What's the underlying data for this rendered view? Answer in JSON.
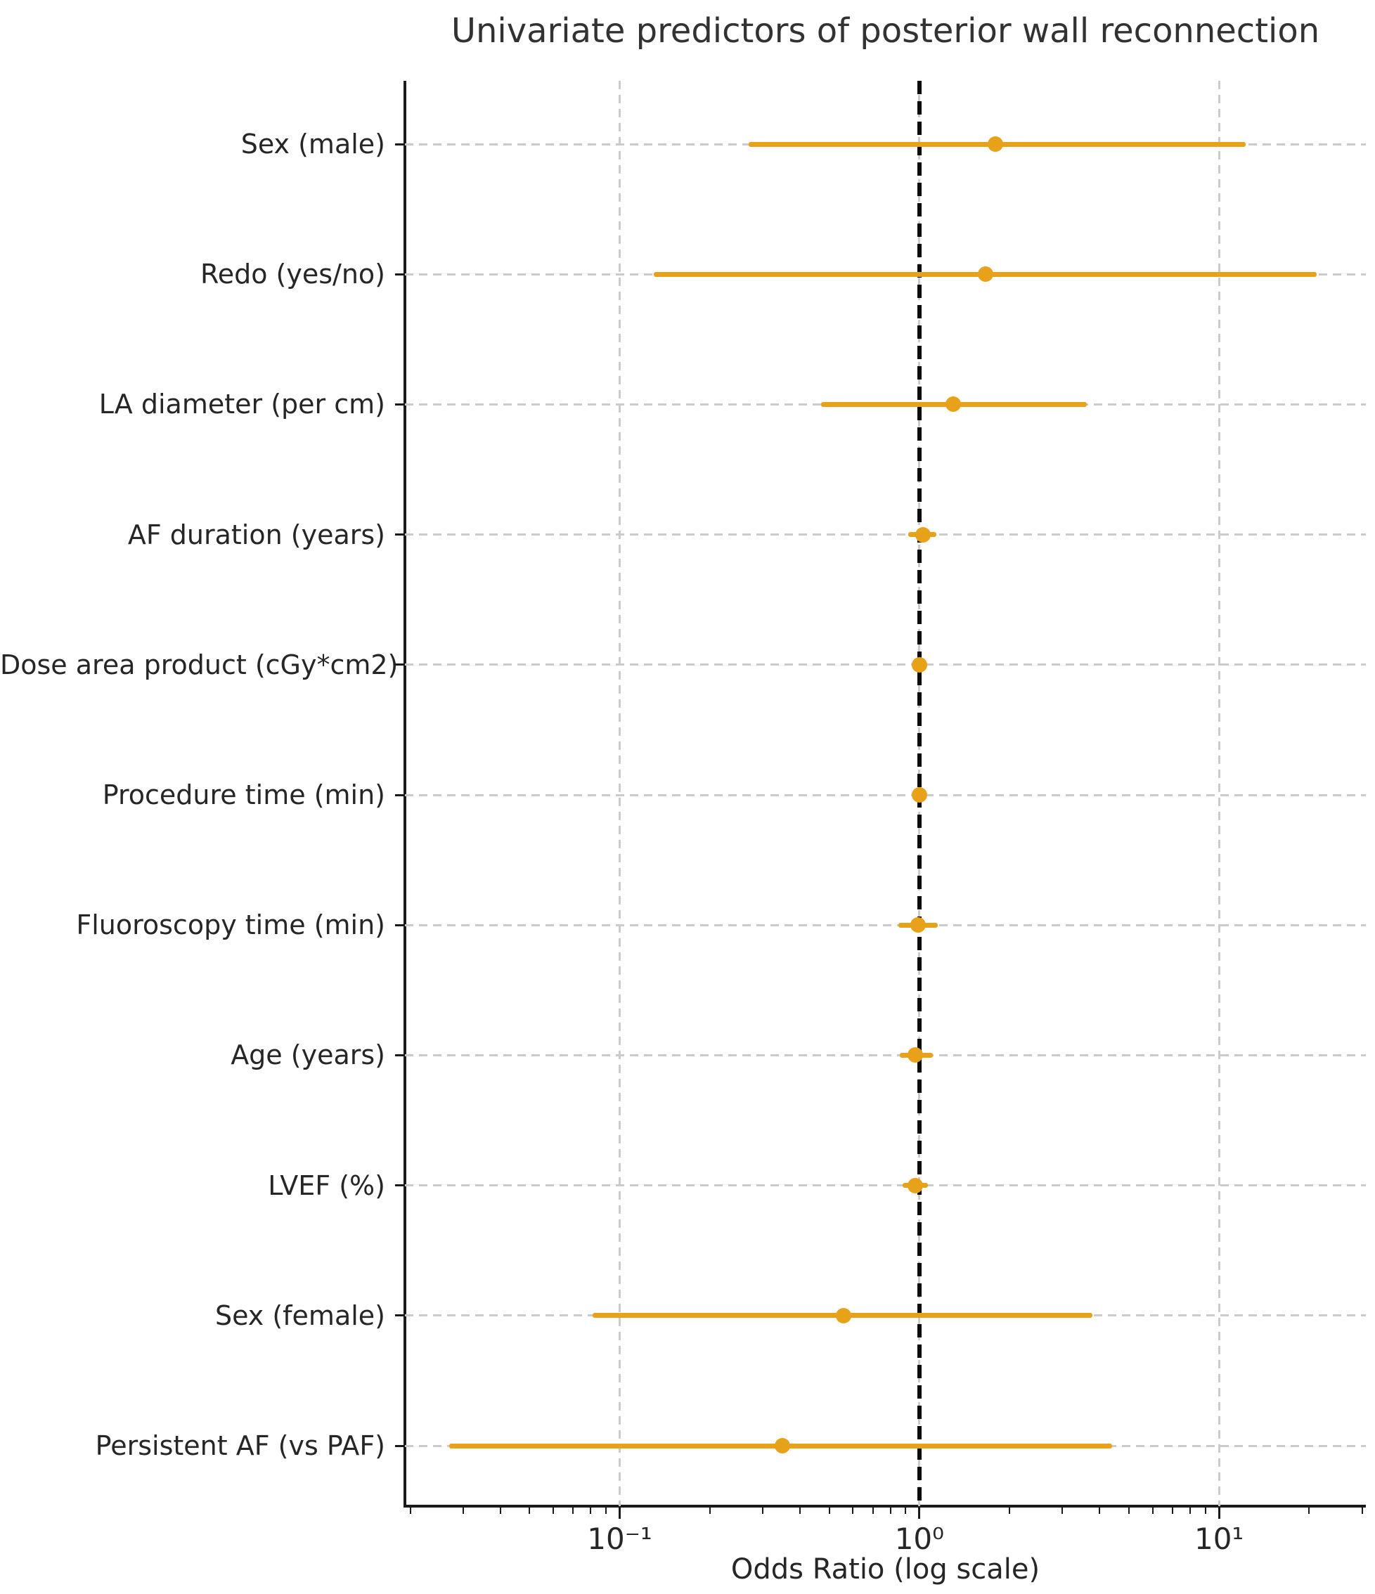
{
  "figure": {
    "title": "Univariate predictors of posterior wall reconnection",
    "background": "#ffffff"
  },
  "chart_data": {
    "type": "scatter",
    "subtype": "forest-plot",
    "title": "Univariate predictors of posterior wall reconnection",
    "xlabel": "Odds Ratio (log scale)",
    "ylabel": "",
    "x_scale": "log10",
    "xlim": [
      0.0192,
      30.9
    ],
    "reference_line": 1.0,
    "grid": "dashed light-gray horizontal per category and vertical per decade",
    "legend": null,
    "colors": {
      "marker": "#E8A21A",
      "reference_line": "#0c0c0c",
      "grid": "#cbcbcb",
      "axis": "#1a1a1a",
      "text": "#262626"
    },
    "x_major_ticks": [
      {
        "value": 0.1,
        "label": "10⁻¹"
      },
      {
        "value": 1,
        "label": "10⁰"
      },
      {
        "value": 10,
        "label": "10¹"
      }
    ],
    "x_minor_ticks": [
      0.02,
      0.03,
      0.04,
      0.05,
      0.06,
      0.07,
      0.08,
      0.09,
      0.2,
      0.3,
      0.4,
      0.5,
      0.6,
      0.7,
      0.8,
      0.9,
      2,
      3,
      4,
      5,
      6,
      7,
      8,
      9,
      20,
      30
    ],
    "rows": [
      {
        "label": "Sex (male)",
        "or": 1.79,
        "ci_low": 0.27,
        "ci_high": 12.3
      },
      {
        "label": "Redo (yes/no)",
        "or": 1.66,
        "ci_low": 0.13,
        "ci_high": 21.2
      },
      {
        "label": "LA diameter (per cm)",
        "or": 1.3,
        "ci_low": 0.47,
        "ci_high": 3.62
      },
      {
        "label": "AF duration (years)",
        "or": 1.03,
        "ci_low": 0.92,
        "ci_high": 1.14
      },
      {
        "label": "Dose area product (cGy*cm2)",
        "or": 1.0,
        "ci_low": 1.0,
        "ci_high": 1.0
      },
      {
        "label": "Procedure time (min)",
        "or": 1.0,
        "ci_low": 0.99,
        "ci_high": 1.01
      },
      {
        "label": "Fluoroscopy time (min)",
        "or": 0.99,
        "ci_low": 0.85,
        "ci_high": 1.15
      },
      {
        "label": "Age (years)",
        "or": 0.97,
        "ci_low": 0.86,
        "ci_high": 1.11
      },
      {
        "label": "LVEF (%)",
        "or": 0.97,
        "ci_low": 0.88,
        "ci_high": 1.07
      },
      {
        "label": "Sex (female)",
        "or": 0.56,
        "ci_low": 0.081,
        "ci_high": 3.78
      },
      {
        "label": "Persistent AF (vs PAF)",
        "or": 0.35,
        "ci_low": 0.027,
        "ci_high": 4.4
      }
    ]
  }
}
